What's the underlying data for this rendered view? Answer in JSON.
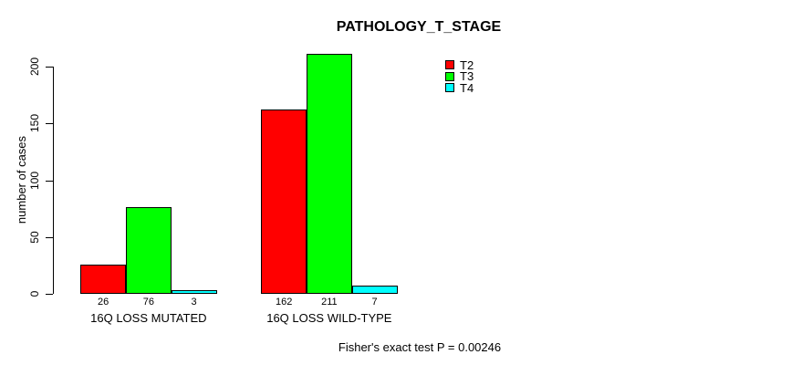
{
  "chart_data": {
    "type": "bar",
    "title": "PATHOLOGY_T_STAGE",
    "categories": [
      "16Q LOSS MUTATED",
      "16Q LOSS WILD-TYPE"
    ],
    "series": [
      {
        "name": "T2",
        "color": "#ff0000",
        "values": [
          26,
          162
        ]
      },
      {
        "name": "T3",
        "color": "#00ff00",
        "values": [
          76,
          211
        ]
      },
      {
        "name": "T4",
        "color": "#00ffff",
        "values": [
          3,
          7
        ]
      }
    ],
    "show_values_under_bars": true,
    "xlabel": "",
    "ylabel": "number of cases",
    "ylim": [
      0,
      200
    ],
    "yticks": [
      0,
      50,
      100,
      150,
      200
    ],
    "grid": false,
    "legend_position": "top-right",
    "annotation": "Fisher's exact test P = 0.00246",
    "bar_border_color": "#000000",
    "background_color": "#ffffff",
    "text_color": "#000000"
  }
}
